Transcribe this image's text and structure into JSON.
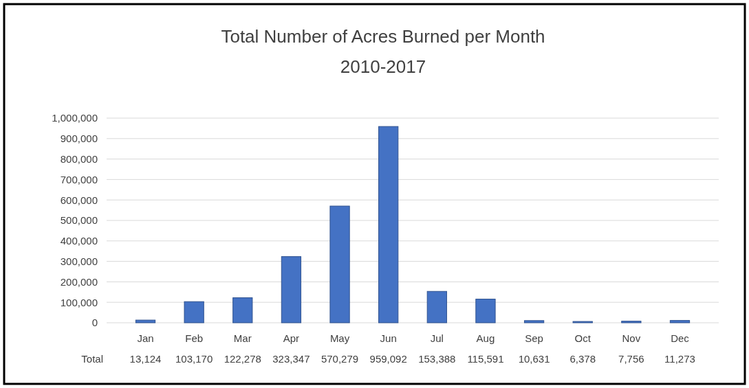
{
  "chart_data": {
    "type": "bar",
    "title": "Total Number of Acres Burned per Month",
    "subtitle": "2010-2017",
    "categories": [
      "Jan",
      "Feb",
      "Mar",
      "Apr",
      "May",
      "Jun",
      "Jul",
      "Aug",
      "Sep",
      "Oct",
      "Nov",
      "Dec"
    ],
    "series": [
      {
        "name": "Total",
        "color": "#4472c4",
        "values": [
          13124,
          103170,
          122278,
          323347,
          570279,
          959092,
          153388,
          115591,
          10631,
          6378,
          7756,
          11273
        ],
        "value_labels": [
          "13,124",
          "103,170",
          "122,278",
          "323,347",
          "570,279",
          "959,092",
          "153,388",
          "115,591",
          "10,631",
          "6,378",
          "7,756",
          "11,273"
        ]
      }
    ],
    "ylim": [
      0,
      1000000
    ],
    "yticks": [
      {
        "value": 0,
        "label": "0"
      },
      {
        "value": 100000,
        "label": "100,000"
      },
      {
        "value": 200000,
        "label": "200,000"
      },
      {
        "value": 300000,
        "label": "300,000"
      },
      {
        "value": 400000,
        "label": "400,000"
      },
      {
        "value": 500000,
        "label": "500,000"
      },
      {
        "value": 600000,
        "label": "600,000"
      },
      {
        "value": 700000,
        "label": "700,000"
      },
      {
        "value": 800000,
        "label": "800,000"
      },
      {
        "value": 900000,
        "label": "900,000"
      },
      {
        "value": 1000000,
        "label": "1,000,000"
      }
    ],
    "grid": "y"
  }
}
